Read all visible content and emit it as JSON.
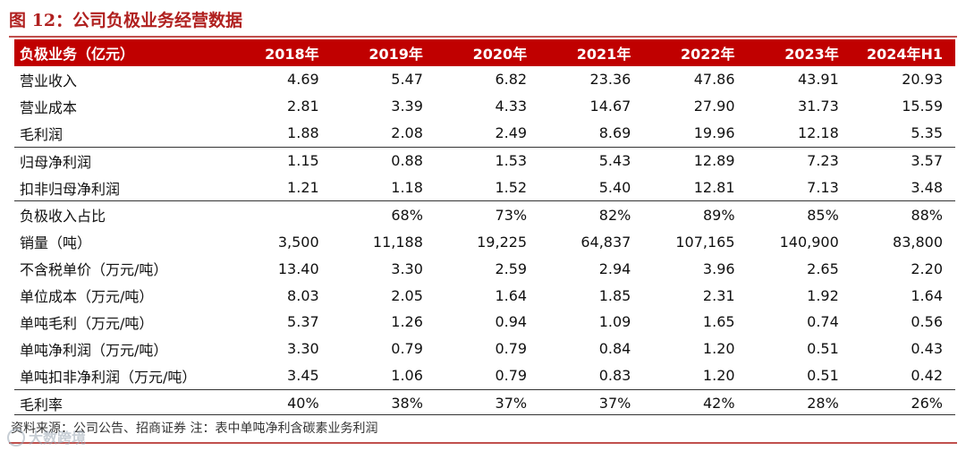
{
  "figure": {
    "title": "图 12：公司负极业务经营数据",
    "source_note": "资料来源：公司公告、招商证券 注：表中单吨净利含碳素业务利润",
    "watermark_text": "大数跨境"
  },
  "table": {
    "header": [
      "负极业务（亿元）",
      "2018年",
      "2019年",
      "2020年",
      "2021年",
      "2022年",
      "2023年",
      "2024年H1"
    ],
    "rows": [
      {
        "label": "营业收入",
        "values": [
          "4.69",
          "5.47",
          "6.82",
          "23.36",
          "47.86",
          "43.91",
          "20.93"
        ],
        "sep": false
      },
      {
        "label": "营业成本",
        "values": [
          "2.81",
          "3.39",
          "4.33",
          "14.67",
          "27.90",
          "31.73",
          "15.59"
        ],
        "sep": false
      },
      {
        "label": "毛利润",
        "values": [
          "1.88",
          "2.08",
          "2.49",
          "8.69",
          "19.96",
          "12.18",
          "5.35"
        ],
        "sep": false
      },
      {
        "label": "归母净利润",
        "values": [
          "1.15",
          "0.88",
          "1.53",
          "5.43",
          "12.89",
          "7.23",
          "3.57"
        ],
        "sep": true
      },
      {
        "label": "扣非归母净利润",
        "values": [
          "1.21",
          "1.18",
          "1.52",
          "5.40",
          "12.81",
          "7.13",
          "3.48"
        ],
        "sep": false
      },
      {
        "label": "负极收入占比",
        "values": [
          "",
          "68%",
          "73%",
          "82%",
          "89%",
          "85%",
          "88%"
        ],
        "sep": true
      },
      {
        "label": "销量（吨）",
        "values": [
          "3,500",
          "11,188",
          "19,225",
          "64,837",
          "107,165",
          "140,900",
          "83,800"
        ],
        "sep": false
      },
      {
        "label": "不含税单价（万元/吨）",
        "values": [
          "13.40",
          "3.30",
          "2.59",
          "2.94",
          "3.96",
          "2.65",
          "2.20"
        ],
        "sep": false
      },
      {
        "label": "单位成本（万元/吨）",
        "values": [
          "8.03",
          "2.05",
          "1.64",
          "1.85",
          "2.31",
          "1.92",
          "1.64"
        ],
        "sep": false
      },
      {
        "label": "单吨毛利（万元/吨）",
        "values": [
          "5.37",
          "1.26",
          "0.94",
          "1.09",
          "1.65",
          "0.74",
          "0.56"
        ],
        "sep": false
      },
      {
        "label": "单吨净利润（万元/吨）",
        "values": [
          "3.30",
          "0.79",
          "0.79",
          "0.84",
          "1.20",
          "0.51",
          "0.43"
        ],
        "sep": false
      },
      {
        "label": "单吨扣非净利润（万元/吨）",
        "values": [
          "3.45",
          "1.06",
          "0.79",
          "0.83",
          "1.20",
          "0.51",
          "0.42"
        ],
        "sep": false
      },
      {
        "label": "毛利率",
        "values": [
          "40%",
          "38%",
          "37%",
          "37%",
          "42%",
          "28%",
          "26%"
        ],
        "sep": true
      }
    ]
  },
  "colors": {
    "header_bg": "#c00000",
    "title": "#b0201f",
    "rule": "#c0504d"
  }
}
